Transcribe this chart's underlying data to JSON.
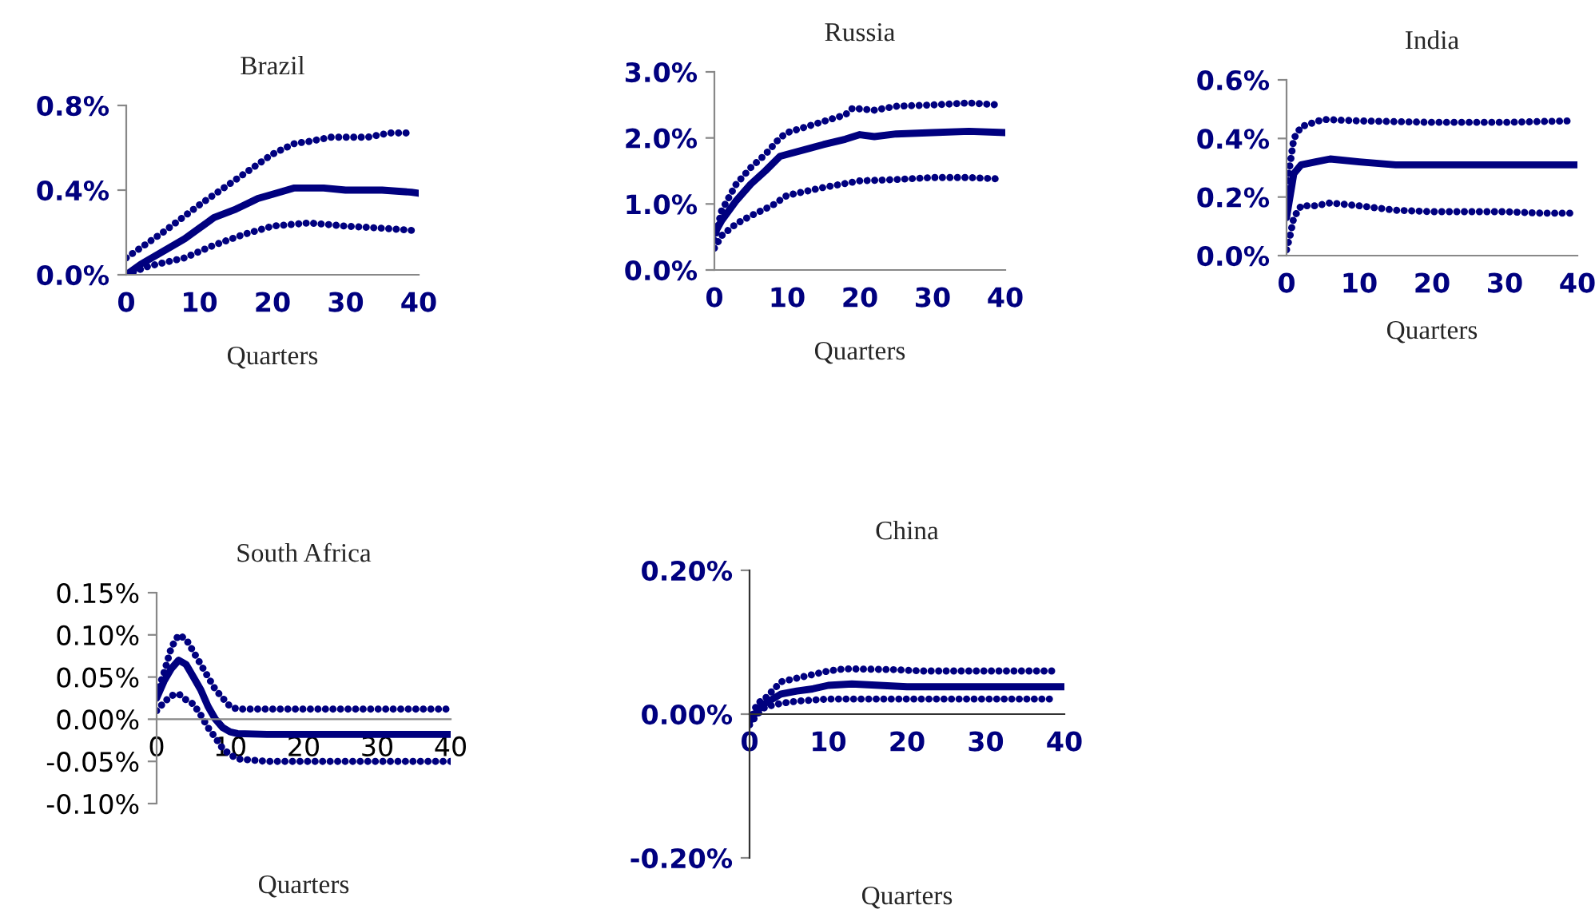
{
  "chart_data": [
    {
      "type": "line",
      "title": "Brazil",
      "xlabel": "Quarters",
      "xlim": [
        0,
        40
      ],
      "xticks": [
        0,
        10,
        20,
        30,
        40
      ],
      "ylim": [
        0,
        0.8
      ],
      "yticks": [
        {
          "value": 0,
          "label": "0.0%"
        },
        {
          "value": 0.4,
          "label": "0.4%"
        },
        {
          "value": 0.8,
          "label": "0.8%"
        }
      ],
      "grid": false,
      "legend": false,
      "series": [
        {
          "color": "#00007f",
          "line_style": "dotted",
          "x": [
            0,
            5,
            10,
            15,
            20,
            23,
            25,
            28,
            33,
            36,
            39
          ],
          "values": [
            0.08,
            0.2,
            0.33,
            0.45,
            0.57,
            0.62,
            0.63,
            0.65,
            0.65,
            0.67,
            0.67
          ]
        },
        {
          "color": "#00007f",
          "line_style": "solid",
          "x": [
            0,
            2,
            5,
            8,
            10,
            12,
            15,
            18,
            20,
            23,
            27,
            30,
            35,
            39,
            40
          ],
          "values": [
            0,
            0.05,
            0.11,
            0.17,
            0.22,
            0.27,
            0.31,
            0.36,
            0.38,
            0.41,
            0.41,
            0.4,
            0.4,
            0.39,
            0.385
          ]
        },
        {
          "color": "#00007f",
          "line_style": "dotted",
          "x": [
            0,
            3,
            8,
            12,
            16,
            20,
            25,
            30,
            35,
            39
          ],
          "values": [
            0,
            0.04,
            0.08,
            0.14,
            0.19,
            0.23,
            0.245,
            0.23,
            0.22,
            0.21
          ]
        }
      ]
    },
    {
      "type": "line",
      "title": "Russia",
      "xlabel": "Quarters",
      "xlim": [
        0,
        40
      ],
      "xticks": [
        0,
        10,
        20,
        30,
        40
      ],
      "ylim": [
        0,
        3
      ],
      "yticks": [
        {
          "value": 0,
          "label": "0.0%"
        },
        {
          "value": 1,
          "label": "1.0%"
        },
        {
          "value": 2,
          "label": "2.0%"
        },
        {
          "value": 3,
          "label": "3.0%"
        }
      ],
      "grid": false,
      "legend": false,
      "series": [
        {
          "color": "#00007f",
          "line_style": "dotted",
          "x": [
            0,
            1,
            2,
            3,
            5,
            7,
            9,
            10,
            15,
            18,
            19,
            22,
            25,
            30,
            35,
            39
          ],
          "values": [
            0.45,
            0.9,
            1.1,
            1.3,
            1.55,
            1.75,
            2.0,
            2.08,
            2.25,
            2.35,
            2.45,
            2.42,
            2.48,
            2.5,
            2.53,
            2.5
          ]
        },
        {
          "color": "#00007f",
          "line_style": "solid",
          "x": [
            0,
            1,
            3,
            5,
            7,
            9,
            10,
            15,
            18,
            20,
            22,
            25,
            30,
            35,
            40
          ],
          "values": [
            0.55,
            0.75,
            1.05,
            1.3,
            1.5,
            1.72,
            1.75,
            1.9,
            1.98,
            2.05,
            2.02,
            2.06,
            2.08,
            2.1,
            2.08
          ]
        },
        {
          "color": "#00007f",
          "line_style": "dotted",
          "x": [
            0,
            1,
            3,
            5,
            8,
            10,
            15,
            20,
            25,
            30,
            35,
            39
          ],
          "values": [
            0.33,
            0.52,
            0.7,
            0.82,
            0.98,
            1.13,
            1.25,
            1.35,
            1.37,
            1.4,
            1.4,
            1.38
          ]
        }
      ]
    },
    {
      "type": "line",
      "title": "India",
      "xlabel": "Quarters",
      "xlim": [
        0,
        40
      ],
      "xticks": [
        0,
        10,
        20,
        30,
        40
      ],
      "ylim": [
        0,
        0.6
      ],
      "yticks": [
        {
          "value": 0,
          "label": "0.0%"
        },
        {
          "value": 0.2,
          "label": "0.2%"
        },
        {
          "value": 0.4,
          "label": "0.4%"
        },
        {
          "value": 0.6,
          "label": "0.6%"
        }
      ],
      "grid": false,
      "legend": false,
      "series": [
        {
          "color": "#00007f",
          "line_style": "dotted",
          "x": [
            0,
            1,
            2,
            5,
            10,
            20,
            30,
            39
          ],
          "values": [
            0.23,
            0.4,
            0.44,
            0.465,
            0.46,
            0.455,
            0.455,
            0.46
          ]
        },
        {
          "color": "#00007f",
          "line_style": "solid",
          "x": [
            0,
            1,
            2,
            4,
            6,
            10,
            15,
            40
          ],
          "values": [
            0.13,
            0.28,
            0.31,
            0.32,
            0.33,
            0.32,
            0.31,
            0.31
          ]
        },
        {
          "color": "#00007f",
          "line_style": "dotted",
          "x": [
            0,
            0.5,
            1,
            2,
            4,
            6,
            10,
            15,
            20,
            30,
            35,
            39
          ],
          "values": [
            0.02,
            0.07,
            0.13,
            0.17,
            0.17,
            0.18,
            0.17,
            0.155,
            0.15,
            0.15,
            0.145,
            0.145
          ]
        }
      ]
    },
    {
      "type": "line",
      "title": "South Africa",
      "xlabel": "Quarters",
      "xlim": [
        0,
        40
      ],
      "xticks": [
        0,
        10,
        20,
        30,
        40
      ],
      "ylim": [
        -0.1,
        0.15
      ],
      "yticks": [
        {
          "value": -0.1,
          "label": "-0.10%"
        },
        {
          "value": -0.05,
          "label": "-0.05%"
        },
        {
          "value": 0,
          "label": "0.00%"
        },
        {
          "value": 0.05,
          "label": "0.05%"
        },
        {
          "value": 0.1,
          "label": "0.10%"
        },
        {
          "value": 0.15,
          "label": "0.15%"
        }
      ],
      "grid": false,
      "legend": false,
      "series": [
        {
          "color": "#00007f",
          "line_style": "dotted",
          "x": [
            0,
            1,
            2,
            3,
            4,
            5,
            6,
            7,
            8,
            9,
            10,
            11,
            40
          ],
          "values": [
            0.03,
            0.055,
            0.085,
            0.1,
            0.095,
            0.08,
            0.065,
            0.05,
            0.035,
            0.025,
            0.015,
            0.012,
            0.012
          ]
        },
        {
          "color": "#00007f",
          "line_style": "solid",
          "x": [
            0,
            1,
            2,
            3,
            4,
            5,
            6,
            7,
            8,
            9,
            10,
            11,
            15,
            40
          ],
          "values": [
            0.025,
            0.045,
            0.06,
            0.07,
            0.065,
            0.05,
            0.035,
            0.015,
            0,
            -0.01,
            -0.015,
            -0.017,
            -0.018,
            -0.018
          ]
        },
        {
          "color": "#00007f",
          "line_style": "dotted",
          "x": [
            0,
            1,
            2,
            3,
            4,
            5,
            6,
            7,
            8,
            9,
            10,
            11,
            15,
            40
          ],
          "values": [
            0.01,
            0.02,
            0.028,
            0.03,
            0.023,
            0.018,
            0.005,
            -0.01,
            -0.022,
            -0.035,
            -0.042,
            -0.047,
            -0.05,
            -0.05
          ]
        }
      ]
    },
    {
      "type": "line",
      "title": "China",
      "xlabel": "Quarters",
      "xlim": [
        0,
        40
      ],
      "xticks": [
        0,
        10,
        20,
        30,
        40
      ],
      "ylim": [
        -0.2,
        0.2
      ],
      "yticks": [
        {
          "value": -0.2,
          "label": "-0.20%"
        },
        {
          "value": 0,
          "label": "0.00%"
        },
        {
          "value": 0.2,
          "label": "0.20%"
        }
      ],
      "grid": false,
      "legend": false,
      "series": [
        {
          "color": "#00007f",
          "line_style": "dotted",
          "x": [
            0,
            1,
            2,
            4,
            6,
            8,
            10,
            12,
            18,
            22,
            30,
            39
          ],
          "values": [
            -0.01,
            0.015,
            0.022,
            0.045,
            0.05,
            0.055,
            0.06,
            0.063,
            0.062,
            0.06,
            0.06,
            0.06
          ]
        },
        {
          "color": "#00007f",
          "line_style": "solid",
          "x": [
            0,
            1,
            2,
            4,
            6,
            8,
            10,
            13,
            20,
            30,
            40
          ],
          "values": [
            -0.01,
            0.005,
            0.015,
            0.028,
            0.032,
            0.035,
            0.04,
            0.042,
            0.038,
            0.038,
            0.038
          ]
        },
        {
          "color": "#00007f",
          "line_style": "dotted",
          "x": [
            0,
            1,
            2,
            4,
            6,
            10,
            20,
            39
          ],
          "values": [
            -0.015,
            0,
            0.01,
            0.015,
            0.018,
            0.021,
            0.021,
            0.021
          ]
        }
      ]
    }
  ]
}
